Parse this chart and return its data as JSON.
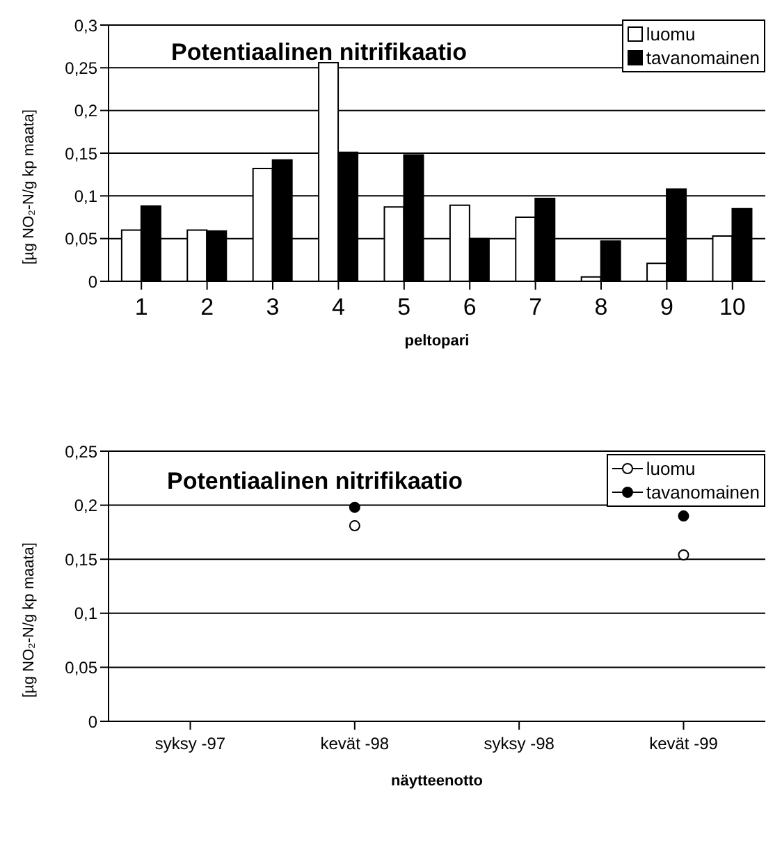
{
  "chart_data": [
    {
      "type": "bar",
      "title": "Potentiaalinen nitrifikaatio",
      "xlabel": "peltopari",
      "ylabel": "[µg NO₂-N/g kp maata]",
      "categories": [
        "1",
        "2",
        "3",
        "4",
        "5",
        "6",
        "7",
        "8",
        "9",
        "10"
      ],
      "series": [
        {
          "name": "luomu",
          "color": "#ffffff",
          "values": [
            0.06,
            0.06,
            0.132,
            0.256,
            0.087,
            0.089,
            0.075,
            0.005,
            0.021,
            0.053
          ]
        },
        {
          "name": "tavanomainen",
          "color": "#000000",
          "values": [
            0.088,
            0.059,
            0.142,
            0.151,
            0.148,
            0.05,
            0.097,
            0.047,
            0.108,
            0.085
          ]
        }
      ],
      "ylim": [
        0,
        0.3
      ],
      "yticks": [
        {
          "value": 0,
          "label": "0"
        },
        {
          "value": 0.05,
          "label": "0,05"
        },
        {
          "value": 0.1,
          "label": "0,1"
        },
        {
          "value": 0.15,
          "label": "0,15"
        },
        {
          "value": 0.2,
          "label": "0,2"
        },
        {
          "value": 0.25,
          "label": "0,25"
        },
        {
          "value": 0.3,
          "label": "0,3"
        }
      ],
      "grid": "y",
      "legend": "top right"
    },
    {
      "type": "scatter",
      "title": "Potentiaalinen nitrifikaatio",
      "xlabel": "näytteenotto",
      "ylabel": "[µg NO₂-N/g kp maata]",
      "categories": [
        "syksy -97",
        "kevät -98",
        "syksy -98",
        "kevät -99"
      ],
      "series": [
        {
          "name": "luomu",
          "color": "#ffffff",
          "values": [
            null,
            0.181,
            null,
            0.154
          ]
        },
        {
          "name": "tavanomainen",
          "color": "#000000",
          "values": [
            null,
            0.198,
            null,
            0.19
          ]
        }
      ],
      "ylim": [
        0,
        0.25
      ],
      "yticks": [
        {
          "value": 0,
          "label": "0"
        },
        {
          "value": 0.05,
          "label": "0,05"
        },
        {
          "value": 0.1,
          "label": "0,1"
        },
        {
          "value": 0.15,
          "label": "0,15"
        },
        {
          "value": 0.2,
          "label": "0,2"
        },
        {
          "value": 0.25,
          "label": "0,25"
        }
      ],
      "grid": "y",
      "legend": "top right",
      "marker": "circle"
    }
  ]
}
